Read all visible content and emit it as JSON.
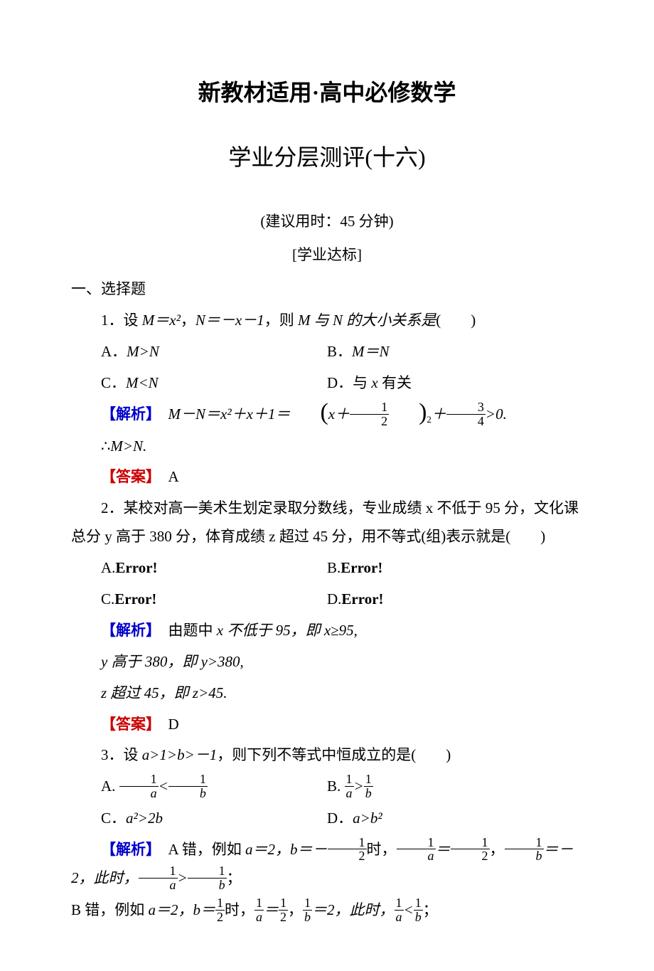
{
  "title_main": "新教材适用·高中必修数学",
  "title_sub": "学业分层测评(十六)",
  "meta_time": "(建议用时：45 分钟)",
  "meta_tag": "[学业达标]",
  "section1_head": "一、选择题",
  "colors": {
    "text": "#000000",
    "bg": "#ffffff",
    "analysis_label": "#0000cc",
    "answer_label": "#cc0000"
  },
  "labels": {
    "analysis": "【解析】",
    "answer": "【答案】"
  },
  "q1": {
    "stem_pre": "1．设 ",
    "mdef": "M＝x²",
    "sep": "，",
    "ndef": "N＝－x－1",
    "stem_mid": "，则 ",
    "subject": "M 与 N 的大小关系是",
    "stem_paren": "(　　)",
    "optA": "A．",
    "optA_body": "M>N",
    "optB": "B．",
    "optB_body": "M＝N",
    "optC": "C．",
    "optC_body": "M<N",
    "optD": "D．与 ",
    "optD_body": "x",
    "optD_tail": " 有关",
    "ana_pre": "　",
    "ana_eq_lhs": "M－N＝x²＋x＋1＝",
    "sq_num": "1",
    "sq_den": "2",
    "rem_num": "3",
    "rem_den": "4",
    "tail": ">0.",
    "therefore": "∴",
    "concl": "M>N.",
    "answer": "　A"
  },
  "q2": {
    "stem": "2．某校对高一美术生划定录取分数线，专业成绩 x 不低于 95 分，文化课总分 y 高于 380 分，体育成绩 z 超过 45 分，用不等式(组)表示就是(　　)",
    "optA": "A.",
    "optB": "B.",
    "optC": "C.",
    "optD": "D.",
    "error": "Error!",
    "ana1_pre": "　由题中 ",
    "ana1_mid": "x 不低于 95，即 x≥95,",
    "ana2": "y 高于 380，即 y>380,",
    "ana3": "z 超过 45，即 z>45.",
    "answer": "　D"
  },
  "q3": {
    "stem_pre": "3．设 ",
    "cond": "a>1>b>－1",
    "stem_mid": "，则下列不等式中恒成立的是(　　)",
    "optA": "A.",
    "optB": "B.",
    "optC_pre": "C．",
    "optC_body": "a²>2b",
    "optD_pre": "D．",
    "optD_body": "a>b²",
    "one": "1",
    "a": "a",
    "b": "b",
    "lt": "<",
    "gt": ">",
    "ana_A_pre": "　A 错，例如 ",
    "ana_A_mid1": "a＝2，b＝－",
    "ana_A_mid2": "时，",
    "ana_A_mid3": "＝",
    "ana_A_mid4": "，",
    "ana_A_mid5": "＝－2，此时，",
    "ana_A_tail": "；",
    "ana_B_pre": "B 错，例如 ",
    "ana_B_mid1": "a＝2，b＝",
    "ana_B_mid2": "时，",
    "ana_B_mid3": "＝",
    "ana_B_mid4": "，",
    "ana_B_mid5": "＝2，此时，",
    "ana_B_tail": "；",
    "half_num": "1",
    "half_den": "2",
    "answer": ""
  }
}
